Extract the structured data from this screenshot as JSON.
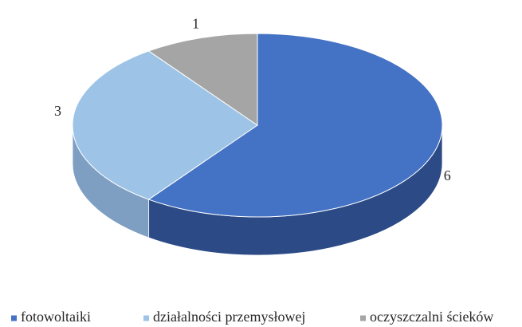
{
  "chart_data": {
    "type": "pie3d",
    "categories": [
      "fotowoltaiki",
      "działalności przemysłowej",
      "oczyszczalni ścieków"
    ],
    "values": [
      6,
      3,
      1
    ],
    "colors": [
      "#4472c4",
      "#9dc3e6",
      "#a5a5a5"
    ],
    "side_colors": [
      "#2b4a86",
      "#7e9fc2",
      "#7f7f7f"
    ],
    "legend": "bottom"
  }
}
